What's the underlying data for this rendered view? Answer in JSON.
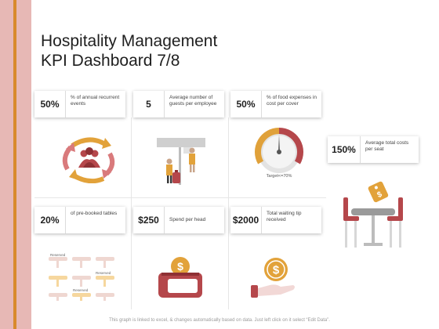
{
  "title_line1": "Hospitality Management",
  "title_line2": "KPI Dashboard 7/8",
  "kpis": {
    "recurrent": {
      "value": "50%",
      "label": "% of annual recurrent events"
    },
    "guests": {
      "value": "5",
      "label": "Average number of guests per employee"
    },
    "food": {
      "value": "50%",
      "label": "% of food expenses in cost per cover"
    },
    "seat": {
      "value": "150%",
      "label": "Average total costs per seat"
    },
    "prebooked": {
      "value": "20%",
      "label": "of pre-booked tables"
    },
    "spend": {
      "value": "$250",
      "label": "Spend per head"
    },
    "tip": {
      "value": "$2000",
      "label": "Total waiting tip received"
    }
  },
  "gauge": {
    "target_text": "Target<=70%",
    "level_percent": 50
  },
  "reserved_labels": [
    "Reserved",
    "Reserved",
    "Reserved"
  ],
  "footer": "This graph is linked to excel, & changes automatically based on data. Just left click on it select “Edit Data”.",
  "colors": {
    "accent_orange": "#d98a2c",
    "side_pink": "#e7b8b5",
    "maroon": "#b5474b",
    "tan": "#c9a58a"
  },
  "icons": [
    "people-cycle-icon",
    "reception-desk-icon",
    "gauge-icon",
    "restaurant-table-icon",
    "reserved-tables-icon",
    "wallet-dollar-icon",
    "hand-coin-icon"
  ]
}
